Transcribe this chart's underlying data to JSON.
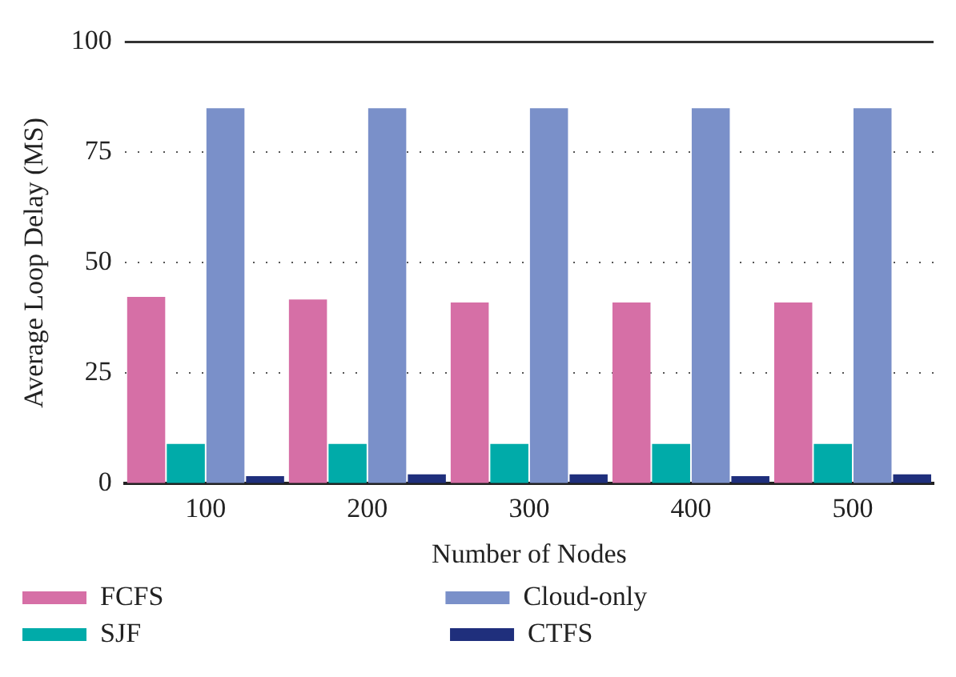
{
  "chart_data": {
    "type": "bar",
    "xlabel": "Number of Nodes",
    "ylabel": "Average Loop Delay (MS)",
    "categories": [
      "100",
      "200",
      "300",
      "400",
      "500"
    ],
    "series": [
      {
        "name": "FCFS",
        "color": "#d66fa6",
        "values": [
          42.3,
          41.7,
          41,
          41,
          41
        ]
      },
      {
        "name": "SJF",
        "color": "#00aba9",
        "values": [
          9,
          9,
          9,
          9,
          9
        ]
      },
      {
        "name": "Cloud-only",
        "color": "#7a90c9",
        "values": [
          85,
          85,
          85,
          85,
          85
        ]
      },
      {
        "name": "CTFS",
        "color": "#1f2f7c",
        "values": [
          1.7,
          2.1,
          2.1,
          1.7,
          2.1
        ]
      }
    ],
    "ylim": [
      0,
      100
    ],
    "yticks": [
      0,
      25,
      50,
      75,
      100
    ],
    "grid": "y",
    "legend": "bottom"
  }
}
